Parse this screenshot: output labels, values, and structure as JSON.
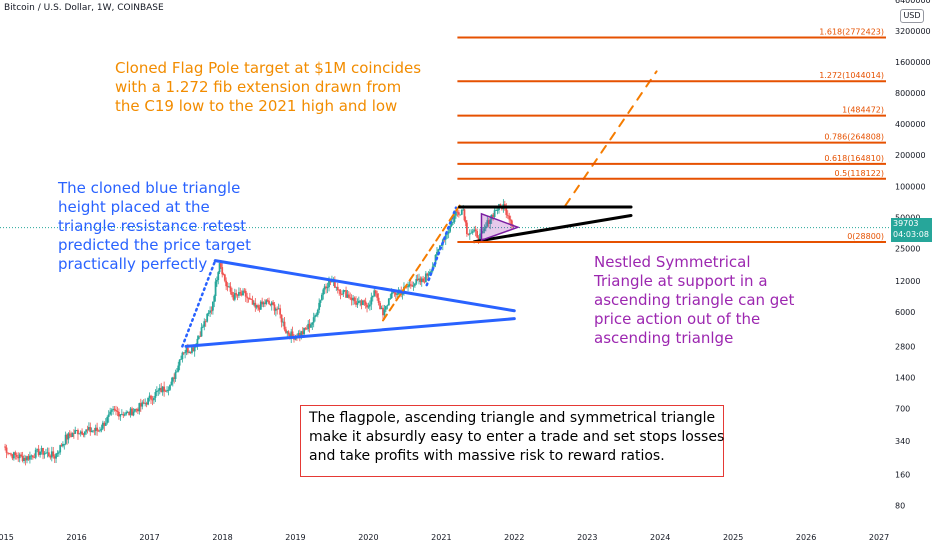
{
  "header": {
    "symbol_label": "Bitcoin / U.S. Dollar, 1W, COINBASE"
  },
  "currency_button": "USD",
  "price_badge": {
    "price": "39703",
    "countdown": "04:03:08",
    "color": "#26a69a"
  },
  "annotations": {
    "orange": "Cloned Flag Pole target at $1M coincides\nwith a 1.272 fib extension drawn from\nthe C19 low to the 2021 high and low",
    "blue": "The cloned blue triangle\nheight placed at the\ntriangle resistance retest\npredicted the price target\npractically perfectly",
    "purple": "Nestled Symmetrical\nTriangle at support in a\nascending triangle can get\nprice action out of the\nascending trianlge",
    "box": "The flagpole, ascending triangle and symmetrical triangle\nmake it absurdly easy to enter a trade and set stops losses\nand take profits with massive risk to reward ratios."
  },
  "chart_data": {
    "type": "line",
    "title": "Bitcoin / U.S. Dollar, 1W, COINBASE",
    "y_scale": "log",
    "xlabel": "",
    "ylabel": "",
    "x_ticks": [
      "2015",
      "2016",
      "2017",
      "2018",
      "2019",
      "2020",
      "2021",
      "2022",
      "2023",
      "2024",
      "2025",
      "2026",
      "2027"
    ],
    "y_ticks": [
      "6400000",
      "3200000",
      "1600000",
      "800000",
      "400000",
      "200000",
      "100000",
      "50000",
      "25000",
      "12000",
      "6000",
      "2800",
      "1400",
      "700",
      "340",
      "160",
      "80"
    ],
    "xlim": [
      2014.95,
      2027.15
    ],
    "ylim": [
      58,
      6400000
    ],
    "series": [
      {
        "name": "",
        "color": "#26a69a",
        "x": [
          2015.0,
          2015.1,
          2015.3,
          2015.5,
          2015.7,
          2015.85,
          2016.0,
          2016.3,
          2016.5,
          2016.7,
          2016.9,
          2017.1,
          2017.3,
          2017.45,
          2017.6,
          2017.75,
          2017.85,
          2017.96,
          2018.05,
          2018.15,
          2018.3,
          2018.45,
          2018.6,
          2018.75,
          2018.87,
          2018.96,
          2019.1,
          2019.25,
          2019.4,
          2019.5,
          2019.6,
          2019.75,
          2019.85,
          2020.0,
          2020.1,
          2020.2,
          2020.3,
          2020.45,
          2020.6,
          2020.75,
          2020.9,
          2021.0,
          2021.1,
          2021.2,
          2021.3,
          2021.35,
          2021.45,
          2021.55,
          2021.65,
          2021.75,
          2021.85,
          2021.95,
          2022.0
        ],
        "y": [
          300,
          250,
          230,
          270,
          240,
          360,
          420,
          430,
          650,
          620,
          750,
          1000,
          1200,
          2500,
          2700,
          4700,
          6500,
          19000,
          11000,
          8500,
          9000,
          6500,
          7500,
          6500,
          4000,
          3500,
          3800,
          5000,
          11000,
          12000,
          10000,
          8500,
          7200,
          7200,
          9500,
          5500,
          8800,
          9500,
          11500,
          12000,
          18000,
          29000,
          38000,
          55000,
          60000,
          37000,
          35000,
          32000,
          47000,
          60000,
          65000,
          48000,
          39703
        ]
      }
    ],
    "fib_levels": [
      {
        "label": "1.618(2772423)",
        "value": 2772423
      },
      {
        "label": "1.272(1044014)",
        "value": 1044014
      },
      {
        "label": "1(484472)",
        "value": 484472
      },
      {
        "label": "0.786(264808)",
        "value": 264808
      },
      {
        "label": "0.618(164810)",
        "value": 164810
      },
      {
        "label": "0.5(118122)",
        "value": 118122
      },
      {
        "label": "0(28800)",
        "value": 28800
      }
    ],
    "fib_color": "#e65100",
    "fib_x_start": 2021.22,
    "fib_x_end": 2027.15,
    "blue_triangle": {
      "color": "#2962ff",
      "top": {
        "x": [
          2017.9,
          2020.9
        ],
        "y": [
          19000,
          11000
        ]
      },
      "bottom": {
        "x": [
          2017.5,
          2020.9
        ],
        "y": [
          2800,
          5000
        ]
      },
      "apex_lines": [
        {
          "x": [
            2017.9,
            2022.0
          ],
          "y": [
            19000,
            6200
          ]
        },
        {
          "x": [
            2017.5,
            2022.0
          ],
          "y": [
            2800,
            5200
          ]
        }
      ]
    },
    "black_triangle": {
      "color": "#000000",
      "top": {
        "x": [
          2021.25,
          2023.6
        ],
        "y": [
          63000,
          63000
        ]
      },
      "bottom": {
        "x": [
          2021.45,
          2023.6
        ],
        "y": [
          29000,
          52000
        ]
      }
    },
    "purple_triangle": {
      "color": "#7b1fa2",
      "x": [
        2021.55,
        2021.55,
        2022.05
      ],
      "y": [
        54000,
        30000,
        40000
      ]
    },
    "orange_projection": {
      "color": "#f57c00",
      "x": [
        2020.2,
        2021.25
      ],
      "y": [
        5000,
        65000
      ]
    },
    "orange_target": {
      "color": "#f57c00",
      "x": [
        2022.7,
        2023.95
      ],
      "y": [
        65000,
        1300000
      ]
    },
    "blue_dotted": {
      "color": "#2962ff",
      "x": [
        2017.45,
        2017.9
      ],
      "y": [
        2800,
        19000
      ]
    },
    "blue_dotted_2": {
      "color": "#2962ff",
      "x": [
        2020.8,
        2021.2
      ],
      "y": [
        11000,
        62000
      ]
    },
    "current_price": {
      "value": 39703,
      "color": "#26a69a"
    }
  }
}
